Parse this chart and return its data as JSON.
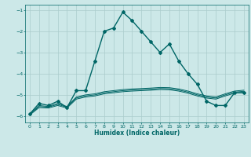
{
  "xlabel": "Humidex (Indice chaleur)",
  "background_color": "#cce8e8",
  "grid_color": "#aacccc",
  "line_color": "#006666",
  "xlim": [
    -0.5,
    23.5
  ],
  "ylim": [
    -6.3,
    -0.75
  ],
  "yticks": [
    -6,
    -5,
    -4,
    -3,
    -2,
    -1
  ],
  "xticks": [
    0,
    1,
    2,
    3,
    4,
    5,
    6,
    7,
    8,
    9,
    10,
    11,
    12,
    13,
    14,
    15,
    16,
    17,
    18,
    19,
    20,
    21,
    22,
    23
  ],
  "series": [
    {
      "x": [
        0,
        1,
        2,
        3,
        4,
        5,
        6,
        7,
        8,
        9,
        10,
        11,
        12,
        13,
        14,
        15,
        16,
        17,
        18,
        19,
        20,
        21,
        22,
        23
      ],
      "y": [
        -5.9,
        -5.4,
        -5.5,
        -5.3,
        -5.6,
        -4.8,
        -4.8,
        -3.4,
        -2.0,
        -1.85,
        -1.1,
        -1.5,
        -2.0,
        -2.5,
        -3.0,
        -2.6,
        -3.4,
        -4.0,
        -4.5,
        -5.3,
        -5.5,
        -5.5,
        -4.9,
        -4.9
      ],
      "marker": "D",
      "markersize": 2.0,
      "linewidth": 1.0
    },
    {
      "x": [
        0,
        1,
        2,
        3,
        4,
        5,
        6,
        7,
        8,
        9,
        10,
        11,
        12,
        13,
        14,
        15,
        16,
        17,
        18,
        19,
        20,
        21,
        22,
        23
      ],
      "y": [
        -5.9,
        -5.5,
        -5.55,
        -5.4,
        -5.55,
        -5.1,
        -5.0,
        -4.95,
        -4.85,
        -4.8,
        -4.75,
        -4.72,
        -4.7,
        -4.68,
        -4.65,
        -4.66,
        -4.72,
        -4.82,
        -4.95,
        -5.05,
        -5.1,
        -4.95,
        -4.82,
        -4.78
      ],
      "marker": null,
      "linewidth": 0.7
    },
    {
      "x": [
        0,
        1,
        2,
        3,
        4,
        5,
        6,
        7,
        8,
        9,
        10,
        11,
        12,
        13,
        14,
        15,
        16,
        17,
        18,
        19,
        20,
        21,
        22,
        23
      ],
      "y": [
        -5.92,
        -5.55,
        -5.58,
        -5.45,
        -5.58,
        -5.15,
        -5.05,
        -5.0,
        -4.9,
        -4.85,
        -4.8,
        -4.77,
        -4.75,
        -4.73,
        -4.7,
        -4.71,
        -4.77,
        -4.87,
        -5.0,
        -5.1,
        -5.15,
        -5.0,
        -4.87,
        -4.83
      ],
      "marker": null,
      "linewidth": 0.7
    },
    {
      "x": [
        0,
        1,
        2,
        3,
        4,
        5,
        6,
        7,
        8,
        9,
        10,
        11,
        12,
        13,
        14,
        15,
        16,
        17,
        18,
        19,
        20,
        21,
        22,
        23
      ],
      "y": [
        -5.95,
        -5.6,
        -5.62,
        -5.5,
        -5.62,
        -5.2,
        -5.1,
        -5.05,
        -4.95,
        -4.9,
        -4.85,
        -4.82,
        -4.8,
        -4.78,
        -4.75,
        -4.76,
        -4.82,
        -4.92,
        -5.05,
        -5.15,
        -5.2,
        -5.05,
        -4.92,
        -4.88
      ],
      "marker": null,
      "linewidth": 0.7
    }
  ]
}
